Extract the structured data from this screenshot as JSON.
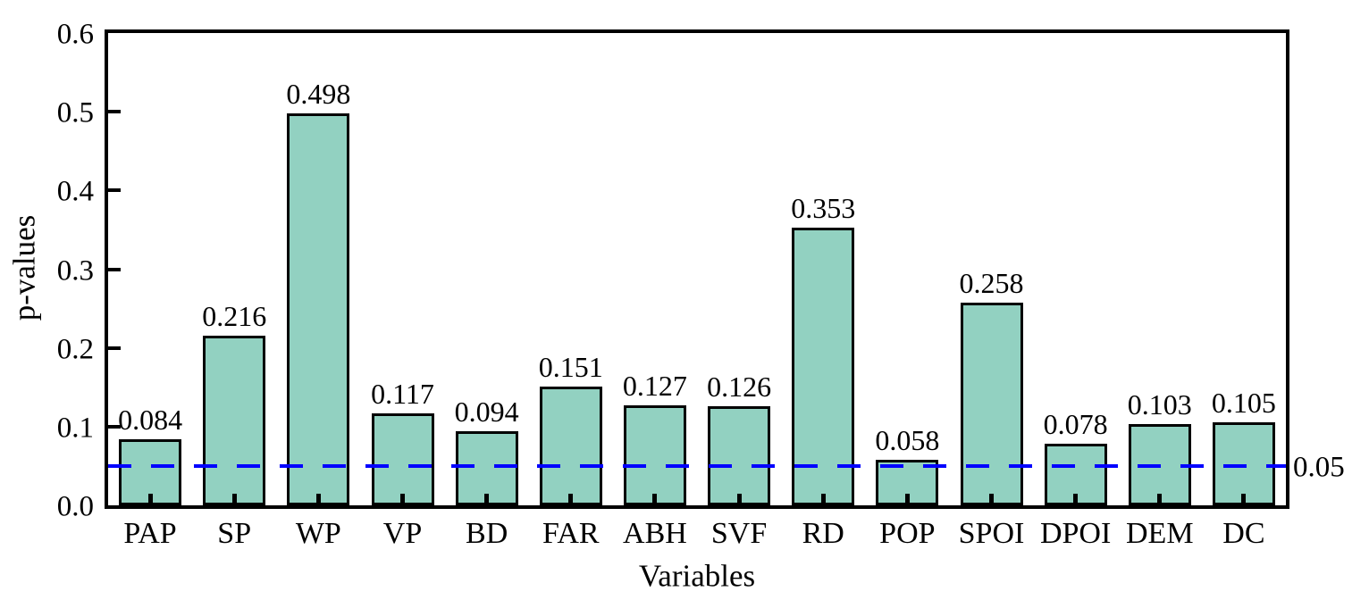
{
  "chart_data": {
    "type": "bar",
    "title": "",
    "xlabel": "Variables",
    "ylabel": "p-values",
    "categories": [
      "PAP",
      "SP",
      "WP",
      "VP",
      "BD",
      "FAR",
      "ABH",
      "SVF",
      "RD",
      "POP",
      "SPOI",
      "DPOI",
      "DEM",
      "DC"
    ],
    "values": [
      0.084,
      0.216,
      0.498,
      0.117,
      0.094,
      0.151,
      0.127,
      0.126,
      0.353,
      0.058,
      0.258,
      0.078,
      0.103,
      0.105
    ],
    "value_labels": [
      "0.084",
      "0.216",
      "0.498",
      "0.117",
      "0.094",
      "0.151",
      "0.127",
      "0.126",
      "0.353",
      "0.058",
      "0.258",
      "0.078",
      "0.103",
      "0.105"
    ],
    "ylim": [
      0.0,
      0.6
    ],
    "yticks": [
      0.0,
      0.1,
      0.2,
      0.3,
      0.4,
      0.5,
      0.6
    ],
    "ytick_labels": [
      "0.0",
      "0.1",
      "0.2",
      "0.3",
      "0.4",
      "0.5",
      "0.6"
    ],
    "grid": false,
    "legend": "none",
    "reference_line": {
      "value": 0.05,
      "label": "0.05",
      "color": "#0000ff",
      "style": "dashed"
    },
    "colors": {
      "bar_fill": "#92d1c1",
      "bar_edge": "#000000",
      "axis": "#000000",
      "text": "#000000"
    }
  }
}
